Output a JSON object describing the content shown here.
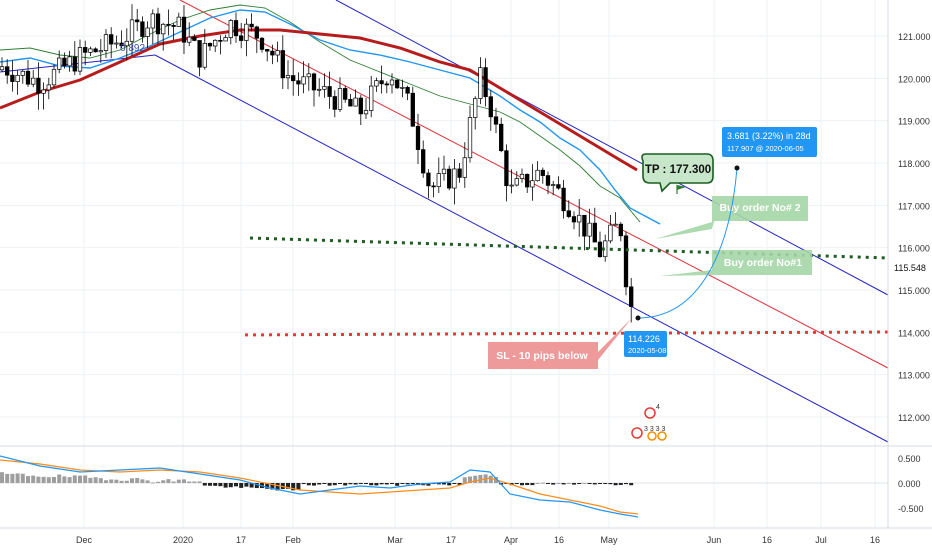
{
  "chart_data": {
    "type": "candlestick",
    "title": "",
    "price_axis": {
      "ticks": [
        "121.000",
        "120.000",
        "119.000",
        "118.000",
        "117.000",
        "116.000",
        "115.000",
        "114.000",
        "113.000",
        "112.000"
      ],
      "tick_values": [
        121,
        120,
        119,
        118,
        117,
        116,
        115,
        114,
        113,
        112
      ],
      "current_price_label": "115.548",
      "current_price": 115.548
    },
    "time_axis": {
      "labels": [
        "Dec",
        "2020",
        "17",
        "Feb",
        "Mar",
        "17",
        "Apr",
        "16",
        "May",
        "Jun",
        "16",
        "Jul",
        "16"
      ]
    },
    "channel": {
      "upper_color": "#2424c8",
      "lower_color": "#2424c8",
      "mid_color": "#e0303a"
    },
    "fib_label": "0.892",
    "levels": {
      "buy_zone_value": 116.1,
      "sl_value": 113.95
    },
    "annotations": {
      "tp": "TP : 177.300",
      "buy1": "Buy order No#1",
      "buy2": "Buy order No# 2",
      "sl": "SL - 10 pips below",
      "measure_main": "3.681 (3.22%) in 28d",
      "measure_sub": "117.907 @ 2020-06-05",
      "low_main": "114.226",
      "low_sub": "2020-05-08",
      "events_count": "4",
      "events_digits": "3 3 3 3"
    },
    "oscillator": {
      "ticks": [
        "0.500",
        "0.000",
        "-0.500"
      ],
      "tick_values": [
        0.5,
        0,
        -0.5
      ],
      "macd_color": "#2196f3",
      "signal_color": "#ff8c1a"
    },
    "colors": {
      "candle": "#000000",
      "ma_slow": "#b71c1c",
      "ma_fast": "#2196f3",
      "ma_mid": "#2e7d32",
      "buy_label_bg": "#a5d6a7",
      "sl_label_bg": "#ef9a9a",
      "measure_bg": "#2196f3"
    }
  }
}
